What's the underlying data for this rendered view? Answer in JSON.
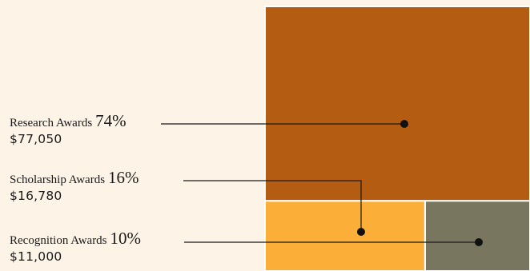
{
  "chart_data": {
    "type": "treemap",
    "title": "",
    "series": [
      {
        "name": "Research Awards",
        "percent_label": "74%",
        "amount_label": "$77,050",
        "value": 77050,
        "color": "#b35c12"
      },
      {
        "name": "Scholarship Awards",
        "percent_label": "16%",
        "amount_label": "$16,780",
        "value": 16780,
        "color": "#fbaf38"
      },
      {
        "name": "Recognition Awards",
        "percent_label": "10%",
        "amount_label": "$11,000",
        "value": 11000,
        "color": "#78765f"
      }
    ]
  },
  "colors": {
    "background": "#fdf3e6",
    "leader_line": "#1a1a1a",
    "divider": "#ffffff"
  }
}
